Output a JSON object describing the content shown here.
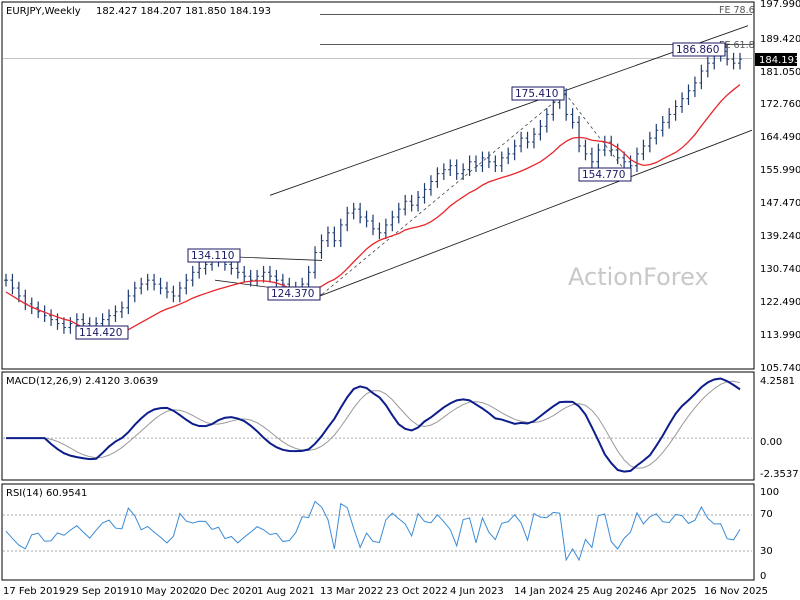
{
  "chart_data": [
    {
      "type": "candlestick",
      "symbol_label": "EURJPY,Weekly",
      "ohlc_label": "182.427 184.207 181.850 184.193",
      "ohlc": {
        "open": 182.427,
        "high": 184.207,
        "low": 181.85,
        "close": 184.193
      },
      "last_price_label": "184.193",
      "y_axis_ticks": [
        "197.990",
        "189.420",
        "181.050",
        "172.760",
        "164.490",
        "155.990",
        "147.470",
        "139.240",
        "130.740",
        "122.490",
        "113.990",
        "105.740"
      ],
      "x_axis_ticks": [
        "17 Feb 2019",
        "29 Sep 2019",
        "10 May 2020",
        "20 Dec 2020",
        "1 Aug 2021",
        "13 Mar 2022",
        "23 Oct 2022",
        "4 Jun 2023",
        "14 Jan 2024",
        "25 Aug 2024",
        "6 Apr 2025",
        "16 Nov 2025"
      ],
      "pivot_labels": [
        {
          "label": "134.110",
          "value": 134.11,
          "date": "2021-05"
        },
        {
          "label": "124.370",
          "value": 124.37,
          "date": "2022-01"
        },
        {
          "label": "114.420",
          "value": 114.42,
          "date": "2020-04"
        },
        {
          "label": "175.410",
          "value": 175.41,
          "date": "2024-06"
        },
        {
          "label": "154.770",
          "value": 154.77,
          "date": "2024-12"
        },
        {
          "label": "186.860",
          "value": 186.86,
          "date": "2025-11"
        }
      ],
      "fib_labels": [
        {
          "label": "FE 78.6",
          "value": 195.3
        },
        {
          "label": "FE 61.8",
          "value": 187.7
        }
      ],
      "moving_average_color": "#e8262b",
      "price_color": "#1e3a6e",
      "watermark": "ActionForex",
      "series_close_approx": [
        128,
        126,
        124,
        122,
        121,
        120,
        119,
        118,
        117,
        116,
        117,
        118,
        117,
        116,
        117,
        118,
        119,
        120,
        121,
        124,
        126,
        127,
        128,
        127,
        126,
        125,
        124,
        126,
        128,
        130,
        131,
        132,
        133,
        134,
        132,
        131,
        130,
        129,
        128,
        129,
        130,
        129,
        128,
        127,
        126,
        125,
        127,
        130,
        135,
        138,
        140,
        138,
        142,
        145,
        146,
        144,
        143,
        141,
        140,
        142,
        144,
        146,
        148,
        147,
        149,
        151,
        153,
        155,
        156,
        157,
        155,
        156,
        158,
        157,
        159,
        158,
        157,
        159,
        160,
        162,
        164,
        163,
        165,
        167,
        170,
        173,
        175,
        170,
        168,
        162,
        160,
        158,
        161,
        163,
        161,
        159,
        158,
        157,
        160,
        162,
        164,
        166,
        168,
        170,
        172,
        174,
        176,
        178,
        181,
        183,
        185,
        186,
        184,
        183,
        184
      ]
    },
    {
      "type": "line",
      "indicator_label": "MACD(12,26,9) 2.4120 3.0639",
      "y_axis_ticks": [
        "4.2581",
        "0.00",
        "-2.3537"
      ],
      "colors": {
        "macd": "#0c1d8c",
        "signal": "#9a9a9a"
      }
    },
    {
      "type": "line",
      "indicator_label": "RSI(14) 60.9541",
      "y_axis_ticks": [
        "100",
        "70",
        "30",
        "0"
      ],
      "color": "#3b8cd6"
    }
  ]
}
